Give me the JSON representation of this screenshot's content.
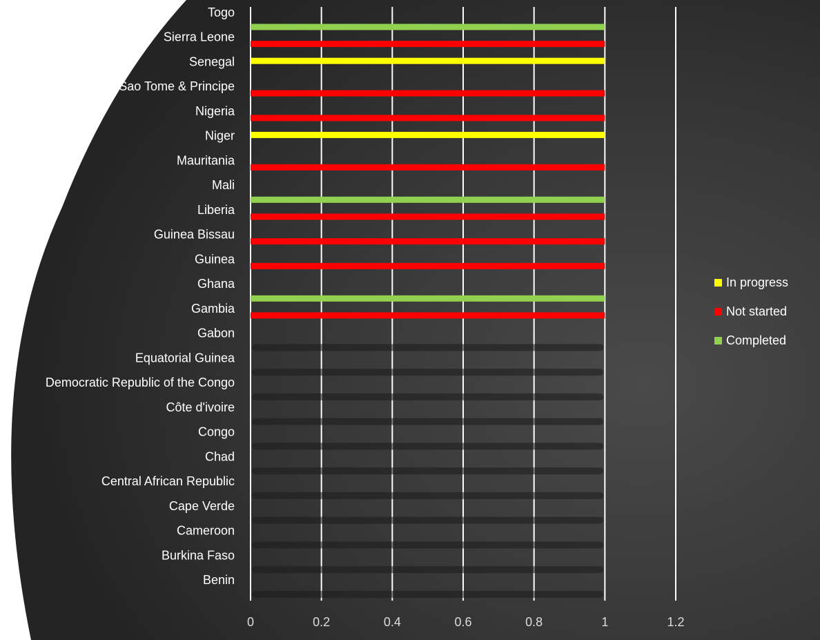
{
  "chart_data": {
    "type": "bar",
    "orientation": "horizontal",
    "categories": [
      "Benin",
      "Burkina Faso",
      "Cameroon",
      "Cape Verde",
      "Central African Republic",
      "Chad",
      "Congo",
      "Côte d'ivoire",
      "Democratic Republic of the Congo",
      "Equatorial Guinea",
      "Gabon",
      "Gambia",
      "Ghana",
      "Guinea",
      "Guinea Bissau",
      "Liberia",
      "Mali",
      "Mauritania",
      "Niger",
      "Nigeria",
      "Sao Tome & Principe",
      "Senegal",
      "Sierra Leone",
      "Togo"
    ],
    "series": [
      {
        "name": "In progress",
        "color": "#ffff00",
        "values": [
          0,
          0,
          0,
          0,
          0,
          0,
          0,
          0,
          0,
          0,
          0,
          0,
          0,
          0,
          0,
          0,
          0,
          0,
          1,
          0,
          0,
          1,
          0,
          0
        ]
      },
      {
        "name": "Not started",
        "color": "#ff0000",
        "values": [
          0,
          0,
          0,
          0,
          0,
          0,
          0,
          0,
          0,
          0,
          0,
          1,
          0,
          1,
          1,
          1,
          0,
          1,
          0,
          1,
          1,
          0,
          1,
          0
        ]
      },
      {
        "name": "Completed",
        "color": "#92d050",
        "values": [
          0,
          0,
          0,
          0,
          0,
          0,
          0,
          0,
          0,
          0,
          0,
          0,
          1,
          0,
          0,
          0,
          1,
          0,
          0,
          0,
          0,
          0,
          0,
          1
        ]
      }
    ],
    "xlim": [
      0,
      1.2
    ],
    "xticks": [
      "0",
      "0.2",
      "0.4",
      "0.6",
      "0.8",
      "1",
      "1.2"
    ],
    "xlabel": "",
    "ylabel": "",
    "title": "",
    "grid": "vertical",
    "legend_position": "right",
    "legend_order": [
      "In progress",
      "Not started",
      "Completed"
    ],
    "colors": {
      "label_text": "#ffffff",
      "gridline": "#ffffff",
      "background": "#3a3a3a"
    }
  }
}
